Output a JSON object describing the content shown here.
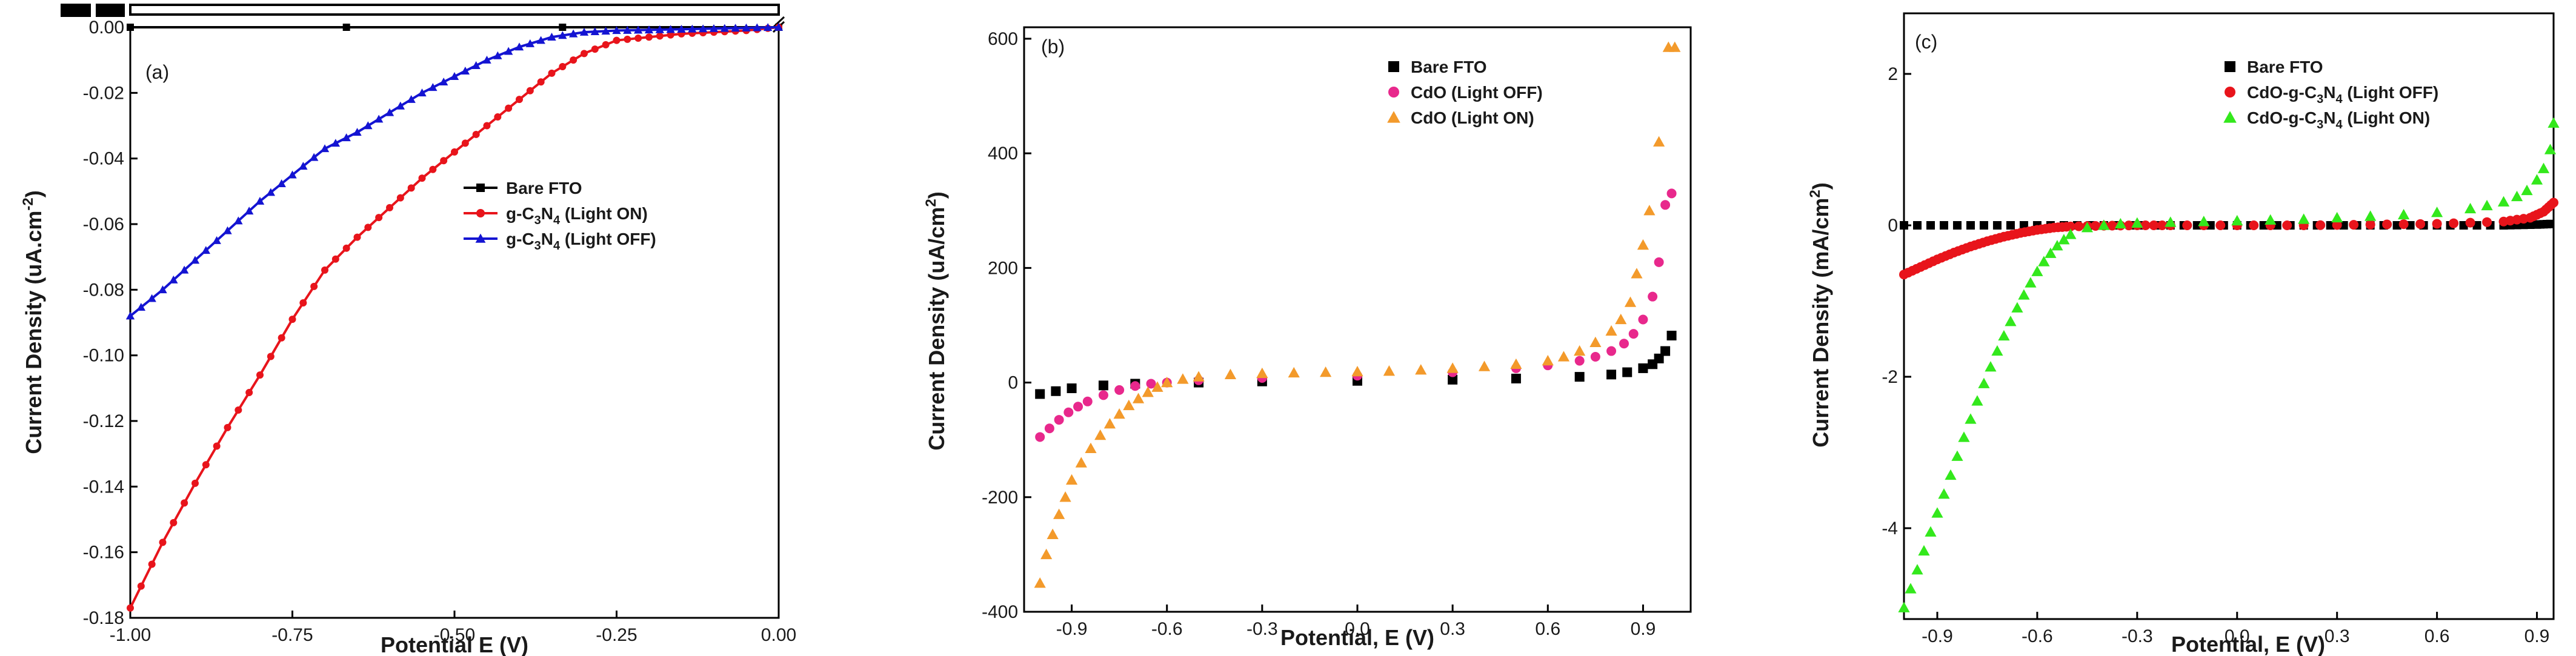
{
  "chart_data": [
    {
      "type": "line",
      "panel_label": "(a)",
      "xlabel": "Potential E (V)",
      "ylabel": "Current Density (uA.cm",
      "ylabel_sup": "-2",
      "ylabel_end": ")",
      "xlim": [
        -1.0,
        0.0
      ],
      "ylim": [
        -0.18,
        0.0
      ],
      "x_ticks": [
        -1.0,
        -0.75,
        -0.5,
        -0.25,
        0.0
      ],
      "x_tick_labels": [
        "-1.00",
        "-0.75",
        "-0.50",
        "-0.25",
        "0.00"
      ],
      "y_ticks": [
        0.0,
        -0.02,
        -0.04,
        -0.06,
        -0.08,
        -0.1,
        -0.12,
        -0.14,
        -0.16,
        -0.18
      ],
      "y_tick_labels": [
        "0.00",
        "-0.02",
        "-0.04",
        "-0.06",
        "-0.08",
        "-0.10",
        "-0.12",
        "-0.14",
        "-0.16",
        "-0.18"
      ],
      "legend_position": "center-right",
      "series": [
        {
          "name": "Bare FTO",
          "label_parts": [
            "Bare FTO"
          ],
          "color": "#000000",
          "marker": "square",
          "x": [
            -1.0,
            0.0
          ],
          "y": [
            0.0,
            0.0
          ],
          "note": "above axis break"
        },
        {
          "name": "g-C3N4 (Light ON)",
          "label_parts": [
            "g-C",
            "3",
            "N",
            "4",
            " (Light ON)"
          ],
          "color": "#e8141b",
          "marker": "circle",
          "x": [
            -1.0,
            -0.95,
            -0.9,
            -0.85,
            -0.8,
            -0.75,
            -0.7,
            -0.65,
            -0.6,
            -0.55,
            -0.5,
            -0.45,
            -0.4,
            -0.35,
            -0.3,
            -0.25,
            -0.2,
            -0.15,
            -0.1,
            -0.05,
            0.0
          ],
          "y": [
            -0.177,
            -0.157,
            -0.139,
            -0.122,
            -0.106,
            -0.089,
            -0.074,
            -0.064,
            -0.055,
            -0.046,
            -0.038,
            -0.03,
            -0.022,
            -0.014,
            -0.008,
            -0.004,
            -0.003,
            -0.002,
            -0.0015,
            -0.001,
            0.0
          ]
        },
        {
          "name": "g-C3N4 (Light OFF)",
          "label_parts": [
            "g-C",
            "3",
            "N",
            "4",
            " (Light OFF)"
          ],
          "color": "#1414d2",
          "marker": "triangle",
          "x": [
            -1.0,
            -0.95,
            -0.9,
            -0.85,
            -0.8,
            -0.75,
            -0.7,
            -0.65,
            -0.6,
            -0.55,
            -0.5,
            -0.45,
            -0.4,
            -0.35,
            -0.3,
            -0.25,
            -0.2,
            -0.15,
            -0.1,
            -0.05,
            0.0
          ],
          "y": [
            -0.088,
            -0.08,
            -0.071,
            -0.062,
            -0.053,
            -0.045,
            -0.037,
            -0.032,
            -0.026,
            -0.02,
            -0.015,
            -0.01,
            -0.006,
            -0.003,
            -0.0015,
            -0.001,
            -0.0008,
            -0.0006,
            -0.0004,
            -0.0002,
            0.0
          ]
        }
      ]
    },
    {
      "type": "scatter",
      "panel_label": "(b)",
      "xlabel": "Potential, E (V)",
      "ylabel": "Current Density (uA/cm",
      "ylabel_sup": "2",
      "ylabel_end": ")",
      "xlim": [
        -1.05,
        1.05
      ],
      "ylim": [
        -400,
        620
      ],
      "x_ticks": [
        -0.9,
        -0.6,
        -0.3,
        0.0,
        0.3,
        0.6,
        0.9
      ],
      "x_tick_labels": [
        "-0.9",
        "-0.6",
        "-0.3",
        "0.0",
        "0.3",
        "0.6",
        "0.9"
      ],
      "y_ticks": [
        600,
        400,
        200,
        0,
        -200,
        -400
      ],
      "y_tick_labels": [
        "600",
        "400",
        "200",
        "0",
        "-200",
        "-400"
      ],
      "legend_position": "top-center",
      "series": [
        {
          "name": "Bare FTO",
          "label_parts": [
            "Bare FTO"
          ],
          "color": "#000000",
          "marker": "square",
          "x": [
            -1.0,
            -0.95,
            -0.9,
            -0.8,
            -0.7,
            -0.5,
            -0.3,
            0.0,
            0.3,
            0.5,
            0.7,
            0.8,
            0.85,
            0.9,
            0.93,
            0.95,
            0.97,
            0.99
          ],
          "y": [
            -20,
            -15,
            -10,
            -5,
            -2,
            0,
            2,
            3,
            5,
            7,
            10,
            14,
            18,
            25,
            32,
            42,
            55,
            82
          ]
        },
        {
          "name": "CdO (Light OFF)",
          "label_parts": [
            "CdO (Light OFF)"
          ],
          "color": "#e8288c",
          "marker": "circle",
          "x": [
            -1.0,
            -0.97,
            -0.94,
            -0.91,
            -0.88,
            -0.85,
            -0.8,
            -0.75,
            -0.7,
            -0.65,
            -0.6,
            -0.5,
            -0.3,
            0.0,
            0.3,
            0.5,
            0.6,
            0.7,
            0.75,
            0.8,
            0.84,
            0.87,
            0.9,
            0.93,
            0.95,
            0.97,
            0.99
          ],
          "y": [
            -95,
            -80,
            -65,
            -52,
            -42,
            -33,
            -22,
            -13,
            -6,
            -2,
            0,
            4,
            8,
            12,
            18,
            25,
            30,
            38,
            45,
            55,
            68,
            85,
            110,
            150,
            210,
            310,
            330
          ]
        },
        {
          "name": "CdO (Light ON)",
          "label_parts": [
            "CdO (Light ON)"
          ],
          "color": "#f39a2b",
          "marker": "triangle",
          "x": [
            -1.0,
            -0.98,
            -0.96,
            -0.94,
            -0.92,
            -0.9,
            -0.87,
            -0.84,
            -0.81,
            -0.78,
            -0.75,
            -0.72,
            -0.69,
            -0.66,
            -0.63,
            -0.6,
            -0.55,
            -0.5,
            -0.4,
            -0.3,
            -0.2,
            -0.1,
            0.0,
            0.1,
            0.2,
            0.3,
            0.4,
            0.5,
            0.6,
            0.65,
            0.7,
            0.75,
            0.8,
            0.83,
            0.86,
            0.88,
            0.9,
            0.92,
            0.95,
            0.98,
            1.0
          ],
          "y": [
            -350,
            -300,
            -265,
            -230,
            -200,
            -170,
            -140,
            -115,
            -92,
            -72,
            -55,
            -40,
            -28,
            -17,
            -8,
            0,
            6,
            10,
            14,
            16,
            17,
            18,
            19,
            20,
            22,
            25,
            28,
            32,
            38,
            45,
            55,
            70,
            90,
            110,
            140,
            190,
            240,
            300,
            420,
            585,
            585
          ]
        }
      ]
    },
    {
      "type": "scatter",
      "panel_label": "(c)",
      "xlabel": "Potential, E (V)",
      "ylabel": "Current Density (mA/cm",
      "ylabel_sup": "2",
      "ylabel_end": ")",
      "xlim": [
        -1.0,
        0.95
      ],
      "ylim": [
        -5.2,
        2.8
      ],
      "x_ticks": [
        -0.9,
        -0.6,
        -0.3,
        0.0,
        0.3,
        0.6,
        0.9
      ],
      "x_tick_labels": [
        "-0.9",
        "-0.6",
        "-0.3",
        "0.0",
        "0.3",
        "0.6",
        "0.9"
      ],
      "y_ticks": [
        2,
        0,
        -2,
        -4
      ],
      "y_tick_labels": [
        "2",
        "0",
        "-2",
        "-4"
      ],
      "legend_position": "top-right",
      "series": [
        {
          "name": "Bare FTO",
          "label_parts": [
            "Bare FTO"
          ],
          "color": "#000000",
          "marker": "square",
          "x": [
            -1.0,
            -0.8,
            -0.6,
            -0.4,
            -0.2,
            0.0,
            0.2,
            0.4,
            0.6,
            0.8,
            0.9,
            0.95
          ],
          "y": [
            0,
            0,
            0,
            0,
            0,
            0,
            0,
            0,
            0,
            0,
            0.01,
            0.02
          ]
        },
        {
          "name": "CdO-g-C3N4 (Light OFF)",
          "label_parts": [
            "CdO-g-C",
            "3",
            "N",
            "4",
            " (Light OFF)"
          ],
          "color": "#e8141b",
          "marker": "circle",
          "x": [
            -1.0,
            -0.95,
            -0.9,
            -0.85,
            -0.8,
            -0.75,
            -0.7,
            -0.65,
            -0.6,
            -0.55,
            -0.5,
            -0.4,
            -0.3,
            -0.2,
            0.0,
            0.2,
            0.4,
            0.6,
            0.8,
            0.88,
            0.92,
            0.95
          ],
          "y": [
            -0.65,
            -0.55,
            -0.45,
            -0.36,
            -0.28,
            -0.21,
            -0.15,
            -0.1,
            -0.06,
            -0.03,
            -0.015,
            -0.005,
            0.0,
            0.0,
            0.0,
            0.0,
            0.01,
            0.02,
            0.05,
            0.1,
            0.18,
            0.3
          ]
        },
        {
          "name": "CdO-g-C3N4 (Light ON)",
          "label_parts": [
            "CdO-g-C",
            "3",
            "N",
            "4",
            " (Light ON)"
          ],
          "color": "#33e81c",
          "marker": "triangle",
          "x": [
            -1.0,
            -0.98,
            -0.96,
            -0.94,
            -0.92,
            -0.9,
            -0.88,
            -0.86,
            -0.84,
            -0.82,
            -0.8,
            -0.78,
            -0.76,
            -0.74,
            -0.72,
            -0.7,
            -0.68,
            -0.66,
            -0.64,
            -0.62,
            -0.6,
            -0.58,
            -0.56,
            -0.54,
            -0.52,
            -0.5,
            -0.45,
            -0.4,
            -0.35,
            -0.3,
            -0.2,
            -0.1,
            0.0,
            0.1,
            0.2,
            0.3,
            0.4,
            0.5,
            0.6,
            0.7,
            0.75,
            0.8,
            0.84,
            0.87,
            0.9,
            0.92,
            0.94,
            0.95
          ],
          "y": [
            -5.05,
            -4.8,
            -4.55,
            -4.3,
            -4.05,
            -3.8,
            -3.55,
            -3.3,
            -3.05,
            -2.8,
            -2.56,
            -2.32,
            -2.09,
            -1.87,
            -1.66,
            -1.46,
            -1.27,
            -1.09,
            -0.92,
            -0.76,
            -0.61,
            -0.48,
            -0.37,
            -0.27,
            -0.19,
            -0.12,
            -0.03,
            0.0,
            0.02,
            0.03,
            0.04,
            0.05,
            0.06,
            0.07,
            0.08,
            0.1,
            0.12,
            0.14,
            0.17,
            0.22,
            0.26,
            0.31,
            0.38,
            0.46,
            0.6,
            0.75,
            1.0,
            1.35
          ]
        }
      ]
    }
  ]
}
